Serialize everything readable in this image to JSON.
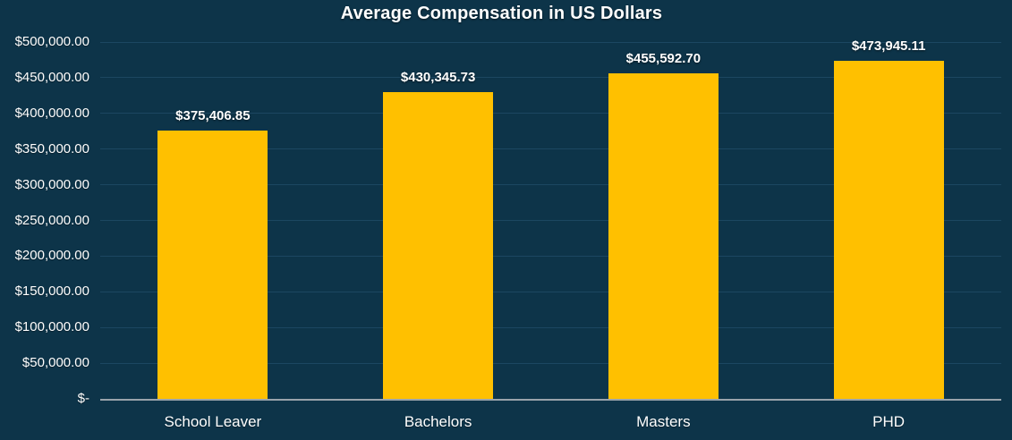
{
  "chart_data": {
    "type": "bar",
    "title": "Average Compensation in US Dollars",
    "categories": [
      "School Leaver",
      "Bachelors",
      "Masters",
      "PHD"
    ],
    "values": [
      375406.85,
      430345.73,
      455592.7,
      473945.11
    ],
    "data_labels": [
      "$375,406.85",
      "$430,345.73",
      "$455,592.70",
      "$473,945.11"
    ],
    "xlabel": "",
    "ylabel": "",
    "ylim": [
      0,
      500000
    ],
    "grid": true,
    "legend": "none",
    "y_ticks": [
      {
        "value": 500000,
        "label": "$500,000.00"
      },
      {
        "value": 450000,
        "label": "$450,000.00"
      },
      {
        "value": 400000,
        "label": "$400,000.00"
      },
      {
        "value": 350000,
        "label": "$350,000.00"
      },
      {
        "value": 300000,
        "label": "$300,000.00"
      },
      {
        "value": 250000,
        "label": "$250,000.00"
      },
      {
        "value": 200000,
        "label": "$200,000.00"
      },
      {
        "value": 150000,
        "label": "$150,000.00"
      },
      {
        "value": 100000,
        "label": "$100,000.00"
      },
      {
        "value": 50000,
        "label": "$50,000.00"
      },
      {
        "value": 0,
        "label": "$-"
      }
    ],
    "colors": {
      "background": "#0D3449",
      "bar": "#FFC000",
      "gridline": "#1C4761",
      "axis_line": "#99A3AB",
      "text": "#FFFFFF"
    }
  }
}
